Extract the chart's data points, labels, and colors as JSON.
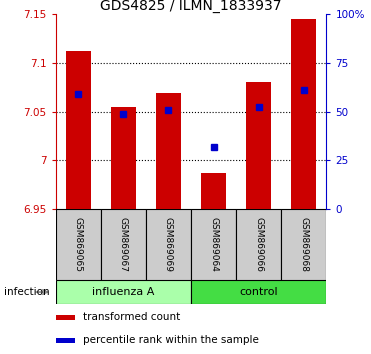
{
  "title": "GDS4825 / ILMN_1833937",
  "samples": [
    "GSM869065",
    "GSM869067",
    "GSM869069",
    "GSM869064",
    "GSM869066",
    "GSM869068"
  ],
  "bar_bottom": 6.95,
  "bar_tops": [
    7.112,
    7.055,
    7.069,
    6.987,
    7.08,
    7.145
  ],
  "blue_marker_values": [
    7.068,
    7.047,
    7.052,
    7.014,
    7.055,
    7.072
  ],
  "ylim_left": [
    6.95,
    7.15
  ],
  "yticks_left": [
    6.95,
    7.0,
    7.05,
    7.1,
    7.15
  ],
  "ytick_labels_left": [
    "6.95",
    "7",
    "7.05",
    "7.1",
    "7.15"
  ],
  "ylim_right": [
    0,
    100
  ],
  "yticks_right": [
    0,
    25,
    50,
    75,
    100
  ],
  "ytick_labels_right": [
    "0",
    "25",
    "50",
    "75",
    "100%"
  ],
  "bar_color": "#cc0000",
  "marker_color": "#0000cc",
  "groups": [
    {
      "label": "influenza A",
      "indices": [
        0,
        1,
        2
      ],
      "color": "#aaffaa"
    },
    {
      "label": "control",
      "indices": [
        3,
        4,
        5
      ],
      "color": "#44dd44"
    }
  ],
  "group_label": "infection",
  "legend_items": [
    {
      "color": "#cc0000",
      "label": "transformed count"
    },
    {
      "color": "#0000cc",
      "label": "percentile rank within the sample"
    }
  ],
  "left_axis_color": "#cc0000",
  "right_axis_color": "#0000cc",
  "bar_width": 0.55,
  "dotted_grid_yticks": [
    7.0,
    7.05,
    7.1
  ],
  "title_fontsize": 10,
  "tick_fontsize": 7.5,
  "sample_fontsize": 6.5,
  "group_fontsize": 8,
  "legend_fontsize": 7.5
}
